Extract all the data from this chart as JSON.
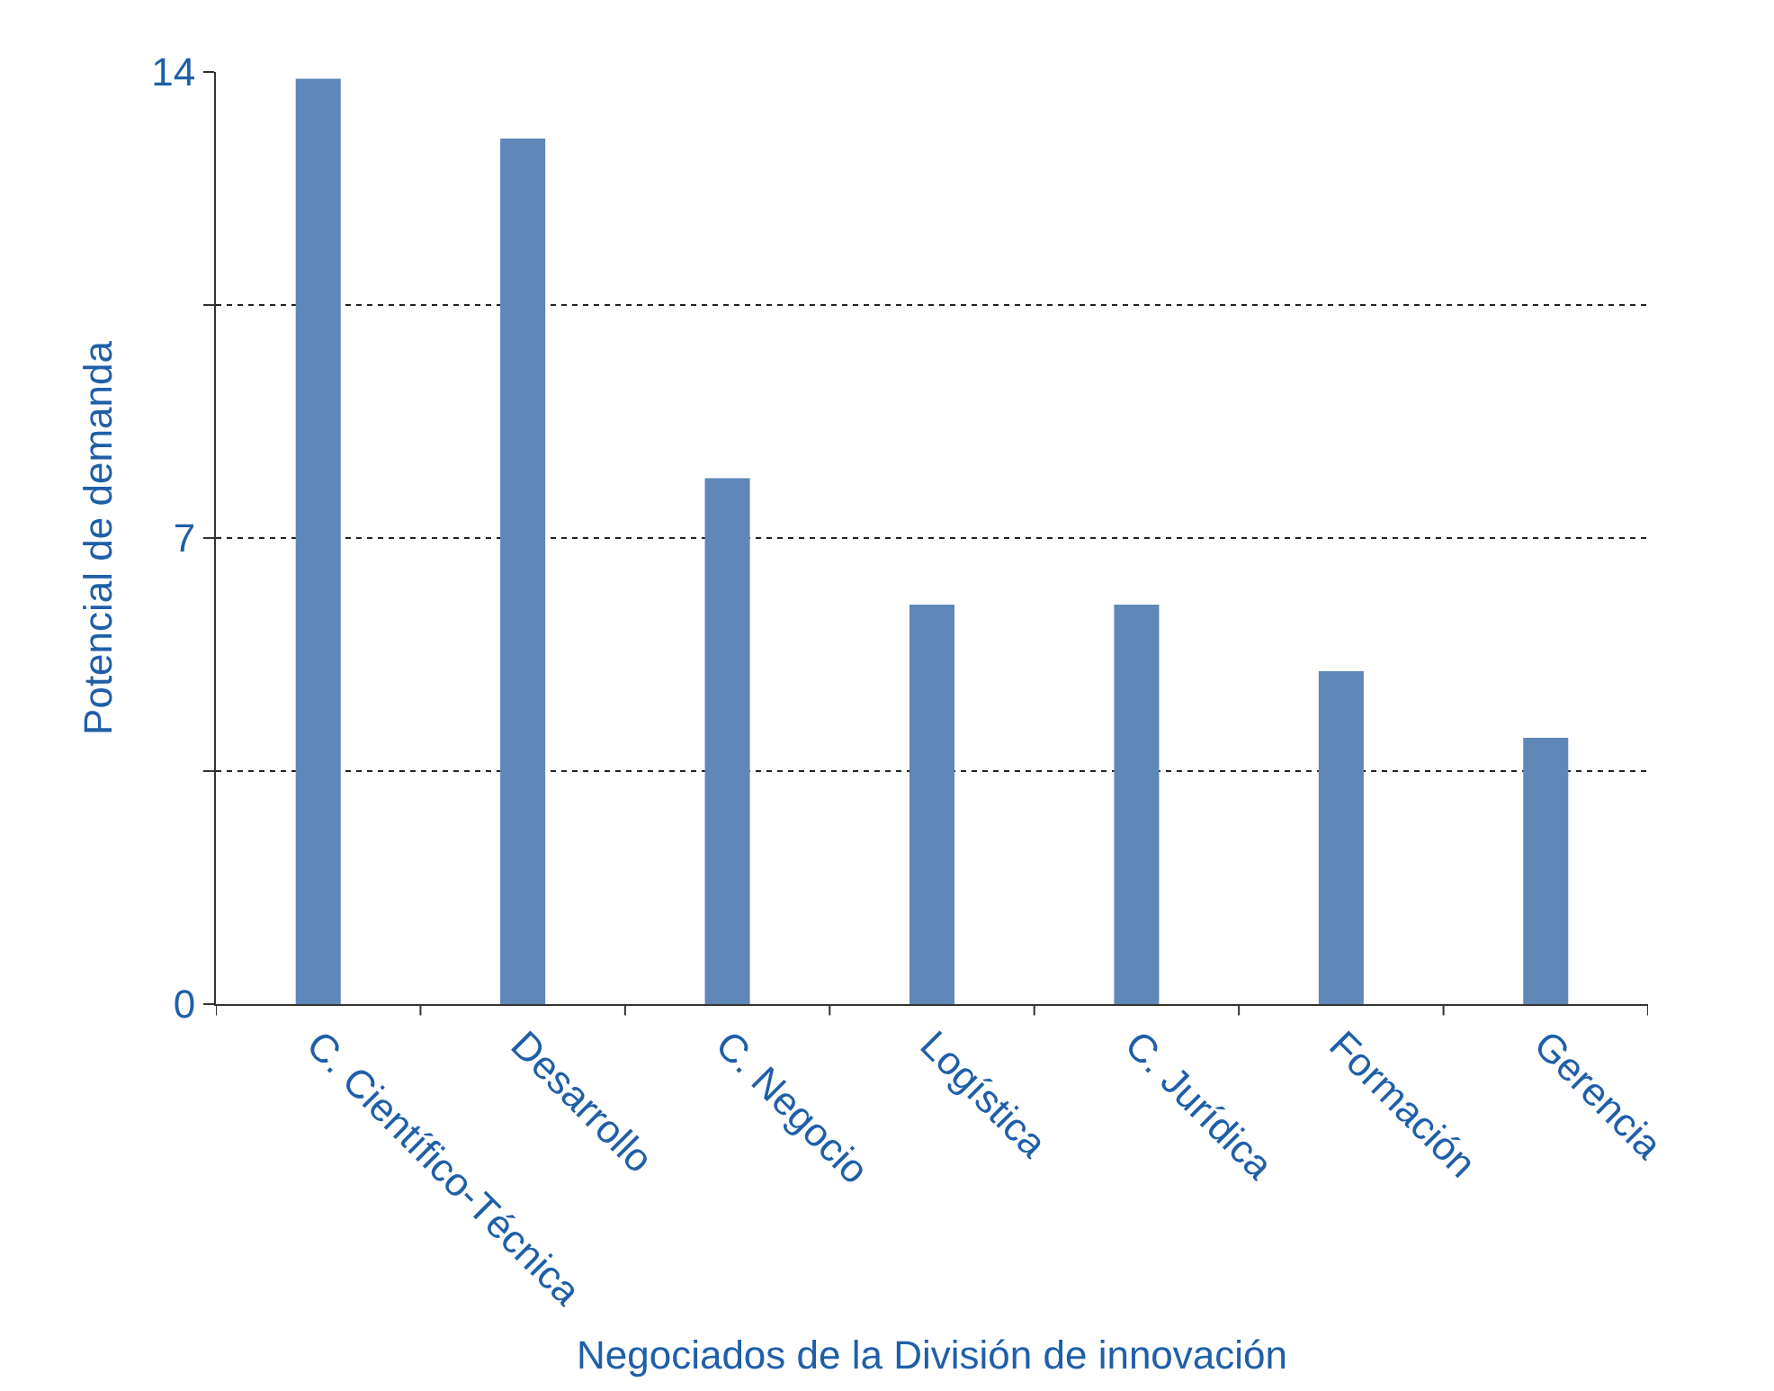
{
  "chart_data": {
    "type": "bar",
    "xlabel": "Negociados de la División de innovación",
    "ylabel": "Potencial de demanda",
    "categories": [
      "C. Científico-Técnica",
      "Desarrollo",
      "C. Negocio",
      "Logística",
      "C. Jurídica",
      "Formación",
      "Gerencia"
    ],
    "values": [
      13.9,
      13,
      7.9,
      6,
      6,
      5,
      4
    ],
    "color": "#5f87b8",
    "ylim": [
      0,
      14
    ],
    "yticks": [
      0,
      {
        "value": 3.5,
        "label": null
      },
      7,
      {
        "value": 10.5,
        "label": null
      },
      14
    ],
    "grid": "y",
    "legend": false
  }
}
